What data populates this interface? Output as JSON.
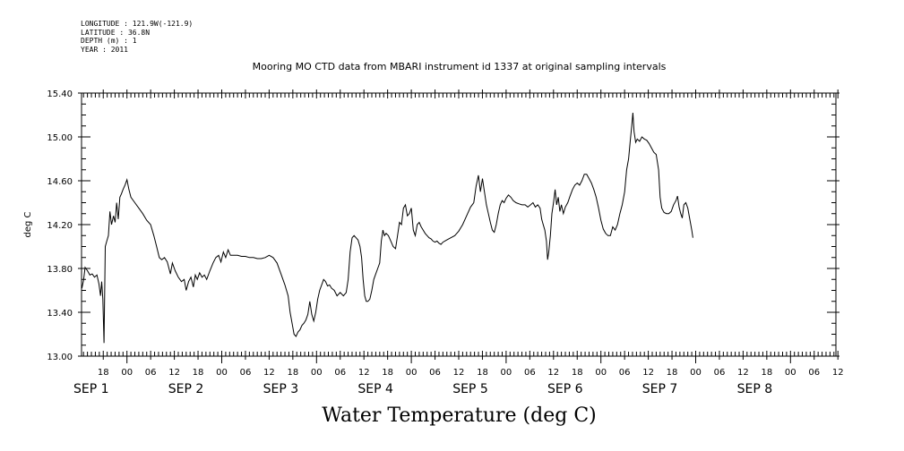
{
  "meta": {
    "longitude": "LONGITUDE : 121.9W(-121.9)",
    "latitude": "LATITUDE : 36.8N",
    "depth": "DEPTH (m) : 1",
    "year": "YEAR : 2011"
  },
  "chart_data": {
    "type": "line",
    "title": "Mooring MO CTD data from MBARI instrument id 1337 at original sampling intervals",
    "bottom_title": "Water Temperature (deg C)",
    "ylabel": "deg C",
    "xlabel": "",
    "ylim": [
      13.0,
      15.4
    ],
    "yticks": [
      "13.00",
      "13.40",
      "13.80",
      "14.20",
      "14.60",
      "15.00",
      "15.40"
    ],
    "ytick_values": [
      13.0,
      13.4,
      13.8,
      14.2,
      14.6,
      15.0,
      15.4
    ],
    "x_units": "hours since 2011-08-31 00:00",
    "xlim": [
      12.5,
      203.5
    ],
    "xhour_ticks": [
      {
        "h": 18,
        "label": "18"
      },
      {
        "h": 24,
        "label": "00"
      },
      {
        "h": 30,
        "label": "06"
      },
      {
        "h": 36,
        "label": "12"
      },
      {
        "h": 42,
        "label": "18"
      },
      {
        "h": 48,
        "label": "00"
      },
      {
        "h": 54,
        "label": "06"
      },
      {
        "h": 60,
        "label": "12"
      },
      {
        "h": 66,
        "label": "18"
      },
      {
        "h": 72,
        "label": "00"
      },
      {
        "h": 78,
        "label": "06"
      },
      {
        "h": 84,
        "label": "12"
      },
      {
        "h": 90,
        "label": "18"
      },
      {
        "h": 96,
        "label": "00"
      },
      {
        "h": 102,
        "label": "06"
      },
      {
        "h": 108,
        "label": "12"
      },
      {
        "h": 114,
        "label": "18"
      },
      {
        "h": 120,
        "label": "00"
      },
      {
        "h": 126,
        "label": "06"
      },
      {
        "h": 132,
        "label": "12"
      },
      {
        "h": 138,
        "label": "18"
      },
      {
        "h": 144,
        "label": "00"
      },
      {
        "h": 150,
        "label": "06"
      },
      {
        "h": 156,
        "label": "12"
      },
      {
        "h": 162,
        "label": "18"
      },
      {
        "h": 168,
        "label": "00"
      },
      {
        "h": 174,
        "label": "06"
      },
      {
        "h": 180,
        "label": "12"
      },
      {
        "h": 186,
        "label": "18"
      },
      {
        "h": 192,
        "label": "00"
      },
      {
        "h": 198,
        "label": "06"
      },
      {
        "h": 204,
        "label": "12"
      }
    ],
    "xday_labels": [
      {
        "h": 12.5,
        "label": "SEP  1"
      },
      {
        "h": 36.5,
        "label": "SEP  2"
      },
      {
        "h": 60.5,
        "label": "SEP  3"
      },
      {
        "h": 84.5,
        "label": "SEP  4"
      },
      {
        "h": 108.5,
        "label": "SEP  5"
      },
      {
        "h": 132.5,
        "label": "SEP  6"
      },
      {
        "h": 156.5,
        "label": "SEP  7"
      },
      {
        "h": 180.5,
        "label": "SEP  8"
      }
    ],
    "series": [
      {
        "values": [
          [
            12.6,
            13.62
          ],
          [
            13.0,
            13.69
          ],
          [
            13.4,
            13.81
          ],
          [
            14.0,
            13.78
          ],
          [
            14.6,
            13.74
          ],
          [
            15.2,
            13.75
          ],
          [
            15.8,
            13.72
          ],
          [
            16.4,
            13.74
          ],
          [
            16.9,
            13.66
          ],
          [
            17.3,
            13.55
          ],
          [
            17.6,
            13.68
          ],
          [
            17.9,
            13.52
          ],
          [
            18.2,
            13.12
          ],
          [
            18.5,
            14.0
          ],
          [
            18.9,
            14.05
          ],
          [
            19.3,
            14.1
          ],
          [
            19.7,
            14.32
          ],
          [
            20.1,
            14.2
          ],
          [
            20.6,
            14.28
          ],
          [
            21.0,
            14.22
          ],
          [
            21.4,
            14.4
          ],
          [
            21.8,
            14.25
          ],
          [
            22.2,
            14.45
          ],
          [
            22.6,
            14.48
          ],
          [
            23.0,
            14.52
          ],
          [
            23.5,
            14.56
          ],
          [
            24.0,
            14.61
          ],
          [
            24.5,
            14.52
          ],
          [
            25.0,
            14.45
          ],
          [
            26.0,
            14.4
          ],
          [
            27.0,
            14.35
          ],
          [
            28.0,
            14.3
          ],
          [
            29.0,
            14.24
          ],
          [
            30.0,
            14.2
          ],
          [
            30.8,
            14.1
          ],
          [
            31.5,
            14.0
          ],
          [
            32.2,
            13.9
          ],
          [
            32.8,
            13.88
          ],
          [
            33.5,
            13.9
          ],
          [
            34.2,
            13.86
          ],
          [
            35.0,
            13.75
          ],
          [
            35.5,
            13.85
          ],
          [
            36.2,
            13.78
          ],
          [
            37.0,
            13.72
          ],
          [
            37.8,
            13.68
          ],
          [
            38.5,
            13.7
          ],
          [
            39.0,
            13.6
          ],
          [
            39.6,
            13.68
          ],
          [
            40.2,
            13.72
          ],
          [
            40.8,
            13.63
          ],
          [
            41.3,
            13.74
          ],
          [
            41.8,
            13.7
          ],
          [
            42.4,
            13.76
          ],
          [
            43.0,
            13.72
          ],
          [
            43.6,
            13.74
          ],
          [
            44.2,
            13.7
          ],
          [
            45.0,
            13.78
          ],
          [
            45.8,
            13.85
          ],
          [
            46.5,
            13.9
          ],
          [
            47.2,
            13.92
          ],
          [
            47.8,
            13.86
          ],
          [
            48.4,
            13.95
          ],
          [
            49.0,
            13.9
          ],
          [
            49.6,
            13.97
          ],
          [
            50.2,
            13.92
          ],
          [
            51.0,
            13.92
          ],
          [
            52.0,
            13.92
          ],
          [
            53.0,
            13.91
          ],
          [
            54.0,
            13.91
          ],
          [
            55.0,
            13.9
          ],
          [
            56.0,
            13.9
          ],
          [
            57.0,
            13.89
          ],
          [
            58.0,
            13.89
          ],
          [
            59.0,
            13.9
          ],
          [
            60.0,
            13.92
          ],
          [
            61.0,
            13.9
          ],
          [
            62.0,
            13.85
          ],
          [
            63.0,
            13.75
          ],
          [
            64.0,
            13.65
          ],
          [
            64.8,
            13.55
          ],
          [
            65.3,
            13.4
          ],
          [
            65.8,
            13.3
          ],
          [
            66.3,
            13.2
          ],
          [
            66.8,
            13.18
          ],
          [
            67.3,
            13.22
          ],
          [
            67.8,
            13.24
          ],
          [
            68.3,
            13.28
          ],
          [
            68.8,
            13.3
          ],
          [
            69.3,
            13.33
          ],
          [
            69.8,
            13.38
          ],
          [
            70.3,
            13.5
          ],
          [
            70.8,
            13.38
          ],
          [
            71.3,
            13.32
          ],
          [
            71.8,
            13.4
          ],
          [
            72.3,
            13.52
          ],
          [
            72.8,
            13.6
          ],
          [
            73.3,
            13.65
          ],
          [
            73.8,
            13.7
          ],
          [
            74.3,
            13.68
          ],
          [
            74.8,
            13.64
          ],
          [
            75.3,
            13.65
          ],
          [
            75.8,
            13.62
          ],
          [
            76.5,
            13.6
          ],
          [
            77.2,
            13.55
          ],
          [
            78.0,
            13.58
          ],
          [
            78.8,
            13.55
          ],
          [
            79.5,
            13.58
          ],
          [
            80.0,
            13.7
          ],
          [
            80.5,
            13.95
          ],
          [
            81.0,
            14.08
          ],
          [
            81.5,
            14.1
          ],
          [
            82.0,
            14.08
          ],
          [
            82.5,
            14.06
          ],
          [
            83.0,
            14.0
          ],
          [
            83.4,
            13.9
          ],
          [
            83.8,
            13.7
          ],
          [
            84.2,
            13.55
          ],
          [
            84.6,
            13.5
          ],
          [
            85.0,
            13.5
          ],
          [
            85.5,
            13.52
          ],
          [
            86.0,
            13.6
          ],
          [
            86.5,
            13.7
          ],
          [
            87.0,
            13.75
          ],
          [
            87.5,
            13.8
          ],
          [
            88.0,
            13.85
          ],
          [
            88.4,
            14.05
          ],
          [
            88.8,
            14.15
          ],
          [
            89.2,
            14.1
          ],
          [
            89.6,
            14.12
          ],
          [
            90.2,
            14.1
          ],
          [
            90.8,
            14.05
          ],
          [
            91.4,
            14.0
          ],
          [
            92.0,
            13.98
          ],
          [
            92.5,
            14.1
          ],
          [
            93.0,
            14.22
          ],
          [
            93.5,
            14.2
          ],
          [
            94.0,
            14.35
          ],
          [
            94.5,
            14.38
          ],
          [
            95.0,
            14.28
          ],
          [
            95.5,
            14.3
          ],
          [
            96.0,
            14.35
          ],
          [
            96.5,
            14.15
          ],
          [
            97.0,
            14.1
          ],
          [
            97.5,
            14.2
          ],
          [
            98.0,
            14.22
          ],
          [
            98.5,
            14.18
          ],
          [
            99.0,
            14.15
          ],
          [
            99.5,
            14.12
          ],
          [
            100.0,
            14.1
          ],
          [
            100.5,
            14.08
          ],
          [
            101.0,
            14.07
          ],
          [
            101.5,
            14.05
          ],
          [
            102.0,
            14.04
          ],
          [
            102.5,
            14.05
          ],
          [
            103.0,
            14.03
          ],
          [
            103.5,
            14.02
          ],
          [
            104.0,
            14.04
          ],
          [
            105.0,
            14.06
          ],
          [
            106.0,
            14.08
          ],
          [
            107.0,
            14.1
          ],
          [
            108.0,
            14.14
          ],
          [
            109.0,
            14.2
          ],
          [
            110.0,
            14.28
          ],
          [
            111.0,
            14.36
          ],
          [
            111.8,
            14.4
          ],
          [
            112.4,
            14.55
          ],
          [
            113.0,
            14.65
          ],
          [
            113.5,
            14.5
          ],
          [
            114.0,
            14.62
          ],
          [
            114.5,
            14.5
          ],
          [
            115.0,
            14.38
          ],
          [
            115.5,
            14.3
          ],
          [
            116.0,
            14.22
          ],
          [
            116.5,
            14.15
          ],
          [
            117.0,
            14.13
          ],
          [
            117.5,
            14.2
          ],
          [
            118.0,
            14.3
          ],
          [
            118.5,
            14.38
          ],
          [
            119.0,
            14.42
          ],
          [
            119.5,
            14.4
          ],
          [
            120.0,
            14.44
          ],
          [
            120.6,
            14.47
          ],
          [
            121.2,
            14.45
          ],
          [
            121.8,
            14.42
          ],
          [
            122.5,
            14.4
          ],
          [
            123.2,
            14.39
          ],
          [
            124.0,
            14.38
          ],
          [
            124.8,
            14.38
          ],
          [
            125.5,
            14.36
          ],
          [
            126.2,
            14.38
          ],
          [
            126.8,
            14.4
          ],
          [
            127.4,
            14.36
          ],
          [
            128.0,
            14.38
          ],
          [
            128.6,
            14.35
          ],
          [
            129.0,
            14.25
          ],
          [
            129.4,
            14.2
          ],
          [
            129.8,
            14.15
          ],
          [
            130.2,
            14.05
          ],
          [
            130.5,
            13.88
          ],
          [
            130.8,
            13.95
          ],
          [
            131.2,
            14.1
          ],
          [
            131.6,
            14.3
          ],
          [
            132.0,
            14.4
          ],
          [
            132.4,
            14.52
          ],
          [
            132.8,
            14.38
          ],
          [
            133.2,
            14.45
          ],
          [
            133.6,
            14.32
          ],
          [
            134.0,
            14.38
          ],
          [
            134.5,
            14.3
          ],
          [
            135.0,
            14.36
          ],
          [
            135.6,
            14.4
          ],
          [
            136.2,
            14.46
          ],
          [
            136.8,
            14.52
          ],
          [
            137.4,
            14.56
          ],
          [
            138.0,
            14.58
          ],
          [
            138.6,
            14.56
          ],
          [
            139.2,
            14.6
          ],
          [
            139.8,
            14.66
          ],
          [
            140.4,
            14.66
          ],
          [
            141.0,
            14.62
          ],
          [
            141.6,
            14.58
          ],
          [
            142.2,
            14.52
          ],
          [
            142.8,
            14.45
          ],
          [
            143.4,
            14.35
          ],
          [
            144.0,
            14.24
          ],
          [
            144.6,
            14.16
          ],
          [
            145.2,
            14.12
          ],
          [
            145.8,
            14.1
          ],
          [
            146.4,
            14.1
          ],
          [
            147.0,
            14.18
          ],
          [
            147.6,
            14.15
          ],
          [
            148.2,
            14.2
          ],
          [
            148.8,
            14.3
          ],
          [
            149.4,
            14.38
          ],
          [
            150.0,
            14.5
          ],
          [
            150.5,
            14.7
          ],
          [
            151.0,
            14.8
          ],
          [
            151.4,
            14.95
          ],
          [
            151.8,
            15.1
          ],
          [
            152.1,
            15.22
          ],
          [
            152.4,
            15.05
          ],
          [
            152.8,
            14.95
          ],
          [
            153.2,
            14.98
          ],
          [
            153.8,
            14.96
          ],
          [
            154.4,
            15.0
          ],
          [
            155.0,
            14.98
          ],
          [
            155.6,
            14.97
          ],
          [
            156.2,
            14.94
          ],
          [
            156.8,
            14.9
          ],
          [
            157.4,
            14.86
          ],
          [
            158.0,
            14.84
          ],
          [
            158.6,
            14.7
          ],
          [
            159.0,
            14.45
          ],
          [
            159.4,
            14.35
          ],
          [
            160.0,
            14.31
          ],
          [
            160.6,
            14.3
          ],
          [
            161.2,
            14.3
          ],
          [
            161.8,
            14.32
          ],
          [
            162.4,
            14.38
          ],
          [
            163.0,
            14.42
          ],
          [
            163.4,
            14.46
          ],
          [
            163.8,
            14.36
          ],
          [
            164.2,
            14.3
          ],
          [
            164.6,
            14.26
          ],
          [
            165.0,
            14.38
          ],
          [
            165.5,
            14.4
          ],
          [
            166.0,
            14.35
          ],
          [
            166.5,
            14.25
          ],
          [
            167.0,
            14.15
          ],
          [
            167.3,
            14.08
          ]
        ]
      }
    ]
  }
}
